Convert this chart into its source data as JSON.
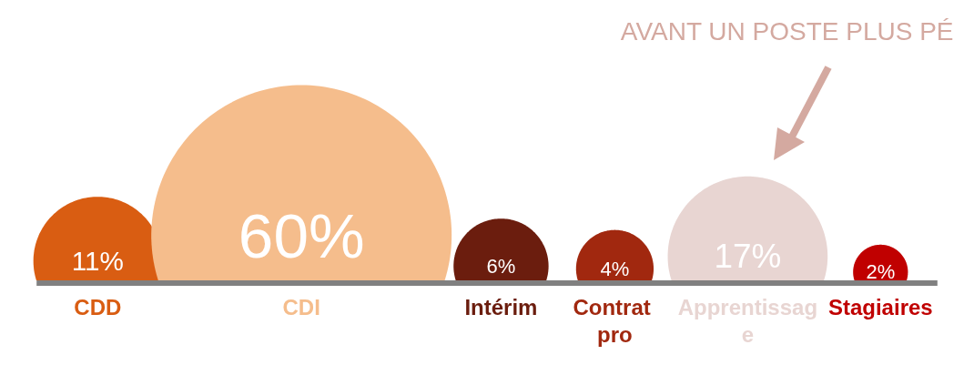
{
  "chart_data": {
    "type": "other",
    "categories": [
      "CDD",
      "CDI",
      "Intérim",
      "Contrat pro",
      "Apprentissage",
      "Stagiaires"
    ],
    "values": [
      11,
      60,
      6,
      4,
      17,
      2
    ],
    "value_labels": [
      "11%",
      "60%",
      "6%",
      "4%",
      "17%",
      "2%"
    ],
    "colors": [
      "#d95d12",
      "#f5bd8c",
      "#6b1d0e",
      "#a1280f",
      "#e8d5d2",
      "#c00000"
    ],
    "annotations": [
      "AVANT UN POSTE PLUS PÉ"
    ]
  }
}
